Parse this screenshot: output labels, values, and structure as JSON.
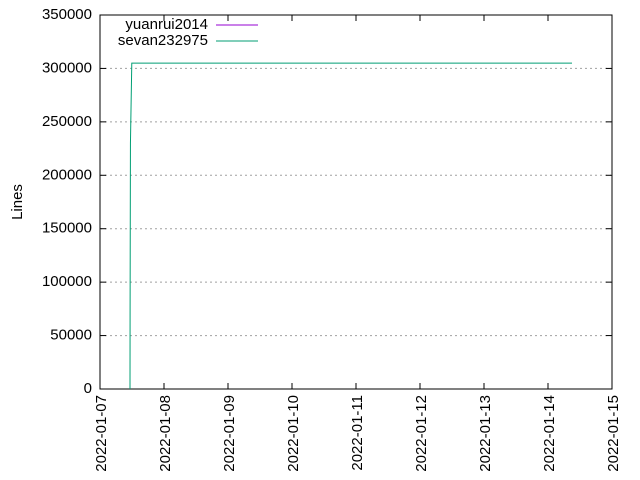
{
  "chart_data": {
    "type": "line",
    "y_label": "Lines",
    "x": [
      "2022-01-07T11:15",
      "2022-01-07T11:17",
      "2022-01-07T11:25",
      "2022-01-07T11:55",
      "2022-01-14T09:00"
    ],
    "series": [
      {
        "name": "yuanrui2014",
        "color": "#9400d3",
        "values": [
          null,
          null,
          null,
          null,
          null
        ]
      },
      {
        "name": "sevan232975",
        "color": "#009e73",
        "values": [
          0,
          75000,
          230000,
          305000,
          305000
        ]
      }
    ],
    "xlim": [
      "2022-01-07",
      "2022-01-15"
    ],
    "xticks": [
      "2022-01-07",
      "2022-01-08",
      "2022-01-09",
      "2022-01-10",
      "2022-01-11",
      "2022-01-12",
      "2022-01-13",
      "2022-01-14",
      "2022-01-15"
    ],
    "ylim": [
      0,
      350000
    ],
    "yticks": [
      0,
      50000,
      100000,
      150000,
      200000,
      250000,
      300000,
      350000
    ],
    "grid": true,
    "legend": "top-left"
  }
}
